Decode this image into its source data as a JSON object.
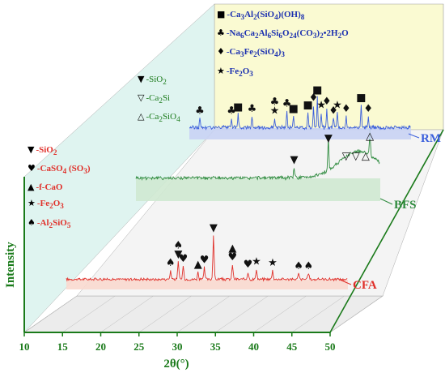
{
  "chart_data": {
    "type": "line",
    "xlabel": "2θ(°)",
    "ylabel": "Intensity",
    "xlim": [
      10,
      50
    ],
    "xticks": [
      "10",
      "15",
      "20",
      "25",
      "30",
      "35",
      "40",
      "45",
      "50"
    ],
    "series": [
      {
        "name": "CFA",
        "color": "#e0302a",
        "fill": "#f9d9cf",
        "peaks": [
          [
            24.8,
            6
          ],
          [
            25.9,
            12
          ],
          [
            26.6,
            9
          ],
          [
            28.7,
            5
          ],
          [
            29.6,
            8
          ],
          [
            30.9,
            30
          ],
          [
            33.6,
            10
          ],
          [
            35.8,
            5
          ],
          [
            37.0,
            7
          ],
          [
            39.3,
            6
          ],
          [
            43.0,
            4
          ],
          [
            44.4,
            4
          ]
        ]
      },
      {
        "name": "BFS",
        "color": "#2e8b3e",
        "fill": "#cfe9d2",
        "peaks": [
          [
            35.9,
            6
          ],
          [
            41.5,
            18
          ],
          [
            48.3,
            14
          ]
        ],
        "hump": [
          46.5,
          4.5,
          15
        ]
      },
      {
        "name": "RM",
        "color": "#3b5fdc",
        "fill": "#c9d3f4",
        "peaks": [
          [
            11.9,
            5
          ],
          [
            17.6,
            5
          ],
          [
            18.8,
            7
          ],
          [
            21.3,
            6
          ],
          [
            25.4,
            5
          ],
          [
            27.6,
            9
          ],
          [
            28.8,
            6
          ],
          [
            31.4,
            8
          ],
          [
            32.4,
            12
          ],
          [
            33.1,
            16
          ],
          [
            33.8,
            8
          ],
          [
            34.8,
            10
          ],
          [
            36.0,
            5
          ],
          [
            36.7,
            8
          ],
          [
            38.3,
            6
          ],
          [
            41.0,
            12
          ],
          [
            42.3,
            6
          ]
        ]
      }
    ]
  },
  "legend_rm": [
    {
      "symbol": "■",
      "html": "-Ca<sub>3</sub>Al<sub>2</sub>(SiO<sub>4</sub>)(OH)<sub>8</sub>"
    },
    {
      "symbol": "♣",
      "html": "-Na<sub>6</sub>Ca<sub>2</sub>Al<sub>6</sub>Si<sub>6</sub>O<sub>24</sub>(CO<sub>3</sub>)<sub>2</sub>•2H<sub>2</sub>O"
    },
    {
      "symbol": "♦",
      "html": "-Ca<sub>3</sub>Fe<sub>2</sub>(SiO<sub>4</sub>)<sub>3</sub>"
    },
    {
      "symbol": "★",
      "html": "-Fe<sub>2</sub>O<sub>3</sub>"
    }
  ],
  "legend_bfs": [
    {
      "symbol": "▼",
      "html": "-SiO<sub>2</sub>"
    },
    {
      "symbol": "▽",
      "html": "-Ca<sub>2</sub>Si"
    },
    {
      "symbol": "△",
      "html": "-Ca<sub>2</sub>SiO<sub>4</sub>"
    }
  ],
  "legend_cfa": [
    {
      "symbol": "▼",
      "html": "-SiO<sub>2</sub>"
    },
    {
      "symbol": "♥",
      "html": "-CaSO<sub>4</sub> (SO<sub>3</sub>)"
    },
    {
      "symbol": "▲",
      "html": "-f-CaO"
    },
    {
      "symbol": "★",
      "html": "-Fe<sub>2</sub>O<sub>3</sub>"
    },
    {
      "symbol": "♠",
      "html": "-Al<sub>2</sub>SiO<sub>5</sub>"
    }
  ]
}
